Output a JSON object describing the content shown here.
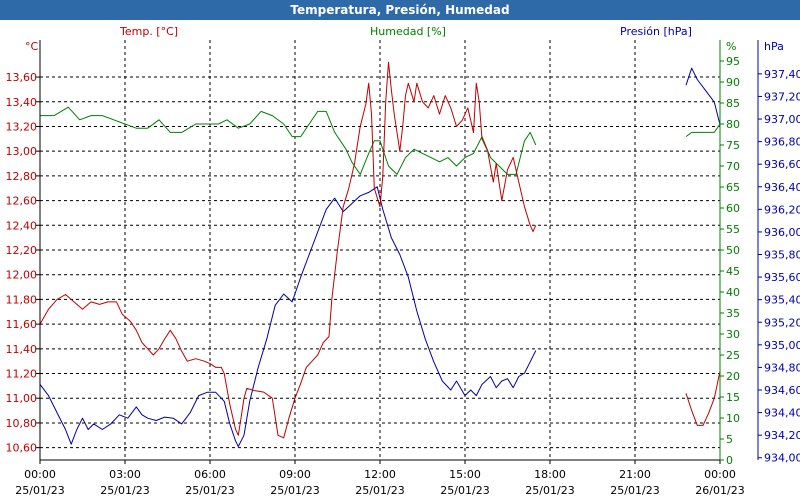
{
  "title": "Temperatura, Presión, Humedad",
  "colors": {
    "temperature": "#c00000",
    "humidity": "#008000",
    "pressure": "#0000aa",
    "title_bar": "#2e6aa8",
    "grid": "#000000"
  },
  "chart_data": {
    "type": "line",
    "title": "Temperatura, Presión, Humedad",
    "grid": true,
    "x_range_hours": [
      0,
      24
    ],
    "x_ticks": [
      {
        "time": "00:00",
        "date": "25/01/23"
      },
      {
        "time": "03:00",
        "date": "25/01/23"
      },
      {
        "time": "06:00",
        "date": "25/01/23"
      },
      {
        "time": "09:00",
        "date": "25/01/23"
      },
      {
        "time": "12:00",
        "date": "25/01/23"
      },
      {
        "time": "15:00",
        "date": "25/01/23"
      },
      {
        "time": "18:00",
        "date": "25/01/23"
      },
      {
        "time": "21:00",
        "date": "25/01/23"
      },
      {
        "time": "00:00",
        "date": "26/01/23"
      }
    ],
    "axes": {
      "temperature": {
        "header": "Temp. [°C]",
        "unit": "°C",
        "range": [
          10.5,
          13.9
        ],
        "ticks": [
          "10,60",
          "10,80",
          "11,00",
          "11,20",
          "11,40",
          "11,60",
          "11,80",
          "12,00",
          "12,20",
          "12,40",
          "12,60",
          "12,80",
          "13,00",
          "13,20",
          "13,40",
          "13,60"
        ],
        "tick_values": [
          10.6,
          10.8,
          11.0,
          11.2,
          11.4,
          11.6,
          11.8,
          12.0,
          12.2,
          12.4,
          12.6,
          12.8,
          13.0,
          13.2,
          13.4,
          13.6
        ]
      },
      "humidity": {
        "header": "Humedad [%]",
        "unit": "%",
        "range": [
          0,
          100
        ],
        "ticks": [
          "0",
          "5",
          "10",
          "15",
          "20",
          "25",
          "30",
          "35",
          "40",
          "45",
          "50",
          "55",
          "60",
          "65",
          "70",
          "75",
          "80",
          "85",
          "90",
          "95"
        ],
        "tick_values": [
          0,
          5,
          10,
          15,
          20,
          25,
          30,
          35,
          40,
          45,
          50,
          55,
          60,
          65,
          70,
          75,
          80,
          85,
          90,
          95
        ]
      },
      "pressure": {
        "header": "Presión [hPa]",
        "unit": "hPa",
        "range": [
          933.98,
          937.7
        ],
        "ticks": [
          "934,00",
          "934,20",
          "934,40",
          "934,60",
          "934,80",
          "935,00",
          "935,20",
          "935,40",
          "935,60",
          "935,80",
          "936,00",
          "936,20",
          "936,40",
          "936,60",
          "936,80",
          "937,00",
          "937,20",
          "937,40"
        ],
        "tick_values": [
          934.0,
          934.2,
          934.4,
          934.6,
          934.8,
          935.0,
          935.2,
          935.4,
          935.6,
          935.8,
          936.0,
          936.2,
          936.4,
          936.6,
          936.8,
          937.0,
          937.2,
          937.4
        ]
      }
    },
    "series": [
      {
        "name": "Temp. [°C]",
        "axis": "temperature",
        "segments": [
          [
            [
              0.0,
              11.6
            ],
            [
              0.3,
              11.72
            ],
            [
              0.6,
              11.8
            ],
            [
              0.9,
              11.84
            ],
            [
              1.2,
              11.78
            ],
            [
              1.5,
              11.72
            ],
            [
              1.8,
              11.78
            ],
            [
              2.1,
              11.76
            ],
            [
              2.4,
              11.78
            ],
            [
              2.7,
              11.78
            ],
            [
              2.9,
              11.68
            ],
            [
              3.2,
              11.62
            ],
            [
              3.4,
              11.55
            ],
            [
              3.6,
              11.45
            ],
            [
              3.8,
              11.4
            ],
            [
              4.0,
              11.35
            ],
            [
              4.2,
              11.4
            ],
            [
              4.4,
              11.48
            ],
            [
              4.6,
              11.55
            ],
            [
              4.8,
              11.48
            ],
            [
              5.0,
              11.38
            ],
            [
              5.2,
              11.3
            ],
            [
              5.5,
              11.32
            ],
            [
              5.8,
              11.3
            ],
            [
              6.0,
              11.28
            ],
            [
              6.2,
              11.25
            ],
            [
              6.4,
              11.25
            ],
            [
              6.5,
              11.2
            ],
            [
              6.7,
              10.95
            ],
            [
              6.9,
              10.75
            ],
            [
              7.0,
              10.7
            ],
            [
              7.1,
              10.85
            ],
            [
              7.2,
              11.0
            ],
            [
              7.3,
              11.08
            ],
            [
              7.6,
              11.06
            ],
            [
              7.9,
              11.05
            ],
            [
              8.2,
              11.0
            ],
            [
              8.4,
              10.7
            ],
            [
              8.6,
              10.68
            ],
            [
              8.8,
              10.85
            ],
            [
              9.0,
              11.0
            ],
            [
              9.2,
              11.12
            ],
            [
              9.4,
              11.25
            ],
            [
              9.6,
              11.3
            ],
            [
              9.8,
              11.35
            ],
            [
              10.0,
              11.45
            ],
            [
              10.2,
              11.5
            ],
            [
              10.3,
              11.8
            ],
            [
              10.5,
              12.2
            ],
            [
              10.7,
              12.55
            ],
            [
              10.9,
              12.7
            ],
            [
              11.1,
              12.9
            ],
            [
              11.3,
              13.2
            ],
            [
              11.5,
              13.38
            ],
            [
              11.6,
              13.55
            ],
            [
              11.7,
              13.3
            ],
            [
              11.8,
              12.7
            ],
            [
              12.0,
              12.55
            ],
            [
              12.1,
              12.8
            ],
            [
              12.2,
              13.4
            ],
            [
              12.3,
              13.72
            ],
            [
              12.4,
              13.5
            ],
            [
              12.5,
              13.3
            ],
            [
              12.6,
              13.15
            ],
            [
              12.7,
              13.0
            ],
            [
              12.8,
              13.2
            ],
            [
              12.9,
              13.45
            ],
            [
              13.0,
              13.55
            ],
            [
              13.2,
              13.4
            ],
            [
              13.3,
              13.55
            ],
            [
              13.5,
              13.4
            ],
            [
              13.7,
              13.35
            ],
            [
              13.9,
              13.45
            ],
            [
              14.1,
              13.3
            ],
            [
              14.3,
              13.45
            ],
            [
              14.5,
              13.35
            ],
            [
              14.7,
              13.2
            ],
            [
              14.9,
              13.25
            ],
            [
              15.1,
              13.35
            ],
            [
              15.3,
              13.15
            ],
            [
              15.4,
              13.55
            ],
            [
              15.5,
              13.4
            ],
            [
              15.6,
              13.1
            ],
            [
              15.8,
              13.0
            ],
            [
              16.0,
              12.75
            ],
            [
              16.1,
              12.9
            ],
            [
              16.3,
              12.6
            ],
            [
              16.5,
              12.85
            ],
            [
              16.7,
              12.95
            ],
            [
              16.9,
              12.75
            ],
            [
              17.1,
              12.55
            ],
            [
              17.3,
              12.4
            ],
            [
              17.4,
              12.35
            ],
            [
              17.5,
              12.4
            ]
          ],
          [
            [
              22.8,
              11.04
            ],
            [
              23.0,
              10.9
            ],
            [
              23.2,
              10.78
            ],
            [
              23.4,
              10.78
            ],
            [
              23.6,
              10.88
            ],
            [
              23.8,
              11.0
            ],
            [
              24.0,
              11.22
            ]
          ]
        ]
      },
      {
        "name": "Humedad [%]",
        "axis": "humidity",
        "segments": [
          [
            [
              0.0,
              82
            ],
            [
              0.5,
              82
            ],
            [
              1.0,
              84
            ],
            [
              1.4,
              81
            ],
            [
              1.8,
              82
            ],
            [
              2.2,
              82
            ],
            [
              2.6,
              81
            ],
            [
              3.0,
              80
            ],
            [
              3.4,
              79
            ],
            [
              3.8,
              79
            ],
            [
              4.2,
              81
            ],
            [
              4.6,
              78
            ],
            [
              5.0,
              78
            ],
            [
              5.5,
              80
            ],
            [
              6.0,
              80
            ],
            [
              6.3,
              80
            ],
            [
              6.6,
              81
            ],
            [
              7.0,
              79
            ],
            [
              7.4,
              80
            ],
            [
              7.8,
              83
            ],
            [
              8.2,
              82
            ],
            [
              8.6,
              80
            ],
            [
              8.9,
              77
            ],
            [
              9.2,
              77
            ],
            [
              9.5,
              80
            ],
            [
              9.8,
              83
            ],
            [
              10.1,
              83
            ],
            [
              10.4,
              78
            ],
            [
              10.8,
              74
            ],
            [
              11.0,
              71
            ],
            [
              11.3,
              68
            ],
            [
              11.6,
              73
            ],
            [
              11.8,
              76
            ],
            [
              12.0,
              76
            ],
            [
              12.3,
              70
            ],
            [
              12.6,
              68
            ],
            [
              12.9,
              72
            ],
            [
              13.2,
              74
            ],
            [
              13.5,
              73
            ],
            [
              13.8,
              72
            ],
            [
              14.1,
              71
            ],
            [
              14.4,
              72
            ],
            [
              14.7,
              70
            ],
            [
              15.0,
              72
            ],
            [
              15.3,
              73
            ],
            [
              15.6,
              77
            ],
            [
              15.9,
              72
            ],
            [
              16.2,
              70
            ],
            [
              16.5,
              68
            ],
            [
              16.8,
              68
            ],
            [
              17.1,
              76
            ],
            [
              17.3,
              78
            ],
            [
              17.5,
              75
            ]
          ],
          [
            [
              22.8,
              77
            ],
            [
              23.0,
              78
            ],
            [
              23.5,
              78
            ],
            [
              23.8,
              78
            ],
            [
              24.0,
              80
            ]
          ]
        ]
      },
      {
        "name": "Presión [hPa]",
        "axis": "pressure",
        "segments": [
          [
            [
              0.0,
              934.65
            ],
            [
              0.3,
              934.55
            ],
            [
              0.6,
              934.4
            ],
            [
              0.9,
              934.25
            ],
            [
              1.1,
              934.12
            ],
            [
              1.3,
              934.25
            ],
            [
              1.5,
              934.35
            ],
            [
              1.7,
              934.25
            ],
            [
              1.9,
              934.3
            ],
            [
              2.2,
              934.25
            ],
            [
              2.5,
              934.3
            ],
            [
              2.8,
              934.38
            ],
            [
              3.1,
              934.35
            ],
            [
              3.4,
              934.45
            ],
            [
              3.6,
              934.38
            ],
            [
              3.8,
              934.35
            ],
            [
              4.1,
              934.33
            ],
            [
              4.4,
              934.36
            ],
            [
              4.7,
              934.35
            ],
            [
              5.0,
              934.3
            ],
            [
              5.3,
              934.4
            ],
            [
              5.6,
              934.55
            ],
            [
              5.9,
              934.58
            ],
            [
              6.2,
              934.58
            ],
            [
              6.5,
              934.5
            ],
            [
              6.7,
              934.3
            ],
            [
              6.9,
              934.15
            ],
            [
              7.0,
              934.1
            ],
            [
              7.2,
              934.2
            ],
            [
              7.4,
              934.5
            ],
            [
              7.7,
              934.8
            ],
            [
              8.0,
              935.05
            ],
            [
              8.3,
              935.35
            ],
            [
              8.6,
              935.45
            ],
            [
              8.9,
              935.38
            ],
            [
              9.2,
              935.6
            ],
            [
              9.5,
              935.8
            ],
            [
              9.8,
              936.0
            ],
            [
              10.1,
              936.2
            ],
            [
              10.4,
              936.3
            ],
            [
              10.7,
              936.18
            ],
            [
              11.0,
              936.25
            ],
            [
              11.3,
              936.32
            ],
            [
              11.6,
              936.35
            ],
            [
              11.9,
              936.4
            ],
            [
              12.1,
              936.2
            ],
            [
              12.4,
              935.95
            ],
            [
              12.7,
              935.8
            ],
            [
              13.0,
              935.6
            ],
            [
              13.3,
              935.3
            ],
            [
              13.6,
              935.05
            ],
            [
              13.9,
              934.85
            ],
            [
              14.2,
              934.68
            ],
            [
              14.5,
              934.6
            ],
            [
              14.7,
              934.68
            ],
            [
              15.0,
              934.55
            ],
            [
              15.2,
              934.6
            ],
            [
              15.4,
              934.55
            ],
            [
              15.6,
              934.65
            ],
            [
              15.9,
              934.72
            ],
            [
              16.1,
              934.62
            ],
            [
              16.3,
              934.68
            ],
            [
              16.5,
              934.7
            ],
            [
              16.7,
              934.62
            ],
            [
              16.9,
              934.72
            ],
            [
              17.1,
              934.75
            ],
            [
              17.3,
              934.85
            ],
            [
              17.5,
              934.95
            ]
          ],
          [
            [
              22.8,
              937.3
            ],
            [
              23.0,
              937.45
            ],
            [
              23.2,
              937.35
            ],
            [
              23.5,
              937.25
            ],
            [
              23.8,
              937.15
            ],
            [
              24.0,
              936.95
            ]
          ]
        ]
      }
    ]
  }
}
